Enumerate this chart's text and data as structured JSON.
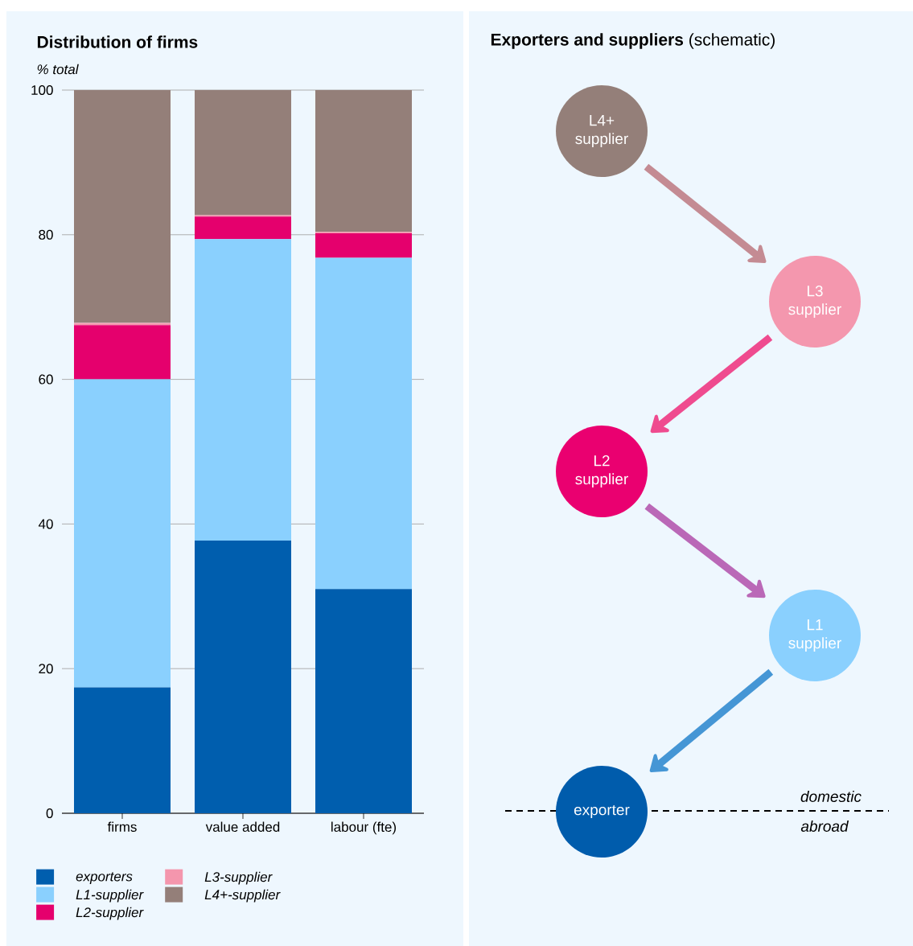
{
  "chart_data": [
    {
      "type": "bar",
      "title": "Distribution of firms",
      "ylabel": "% total",
      "categories": [
        "firms",
        "value added",
        "labour (fte)"
      ],
      "stacked": true,
      "ylim": [
        0,
        100
      ],
      "yticks": [
        0,
        20,
        40,
        60,
        80,
        100
      ],
      "grid": "y",
      "legend": "bottom",
      "series": [
        {
          "name": "exporters",
          "color": "#005eae",
          "values": [
            17.4,
            37.7,
            31.0
          ]
        },
        {
          "name": "L1-supplier",
          "color": "#8ad0fe",
          "values": [
            42.6,
            41.7,
            45.8
          ]
        },
        {
          "name": "L2-supplier",
          "color": "#e5006d",
          "values": [
            7.5,
            3.1,
            3.4
          ]
        },
        {
          "name": "L3-supplier",
          "color": "#f496ad",
          "values": [
            0.3,
            0.2,
            0.2
          ]
        },
        {
          "name": "L4+-supplier",
          "color": "#947f79",
          "values": [
            32.2,
            17.3,
            19.6
          ]
        }
      ]
    },
    {
      "type": "other",
      "title": "**Exporters and suppliers** (schematic)",
      "annotations": [
        "L4+ supplier",
        "L3 supplier",
        "L2 supplier",
        "L1 supplier",
        "exporter",
        "domestic",
        "abroad"
      ],
      "colors": [
        "#947f79",
        "#f497ae",
        "#ea0070",
        "#8ad0fe",
        "#005cac"
      ]
    }
  ]
}
